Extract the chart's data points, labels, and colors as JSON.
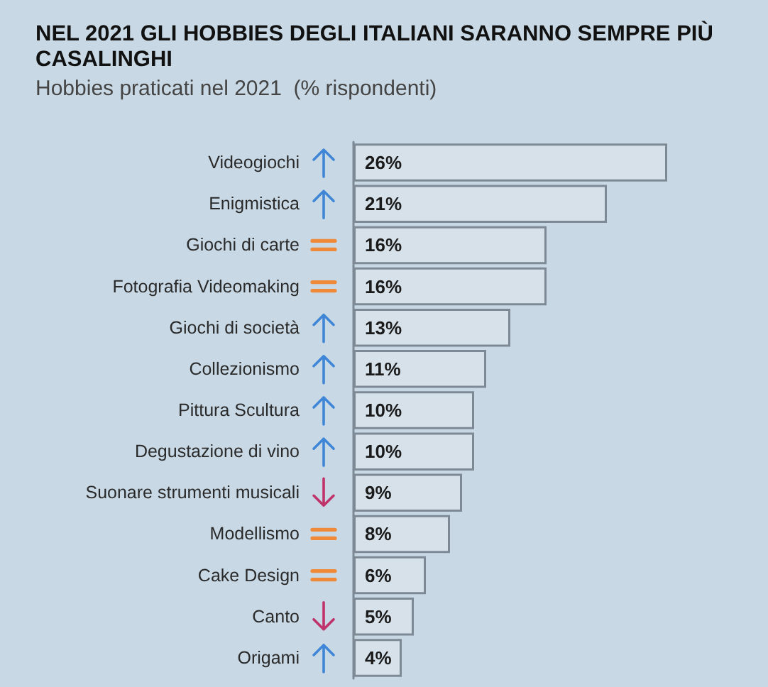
{
  "chart_data": {
    "type": "bar",
    "orientation": "horizontal",
    "title": "NEL 2021 GLI HOBBIES DEGLI ITALIANI SARANNO SEMPRE PIÙ CASALINGHI",
    "subtitle": "Hobbies praticati nel 2021  (% rispondenti)",
    "categories": [
      "Videogiochi",
      "Enigmistica",
      "Giochi di carte",
      "Fotografia Videomaking",
      "Giochi di società",
      "Collezionismo",
      "Pittura Scultura",
      "Degustazione di vino",
      "Suonare strumenti musicali",
      "Modellismo",
      "Cake Design",
      "Canto",
      "Origami"
    ],
    "values": [
      26,
      21,
      16,
      16,
      13,
      11,
      10,
      10,
      9,
      8,
      6,
      5,
      4
    ],
    "value_labels": [
      "26%",
      "21%",
      "16%",
      "16%",
      "13%",
      "11%",
      "10%",
      "10%",
      "9%",
      "8%",
      "6%",
      "5%",
      "4%"
    ],
    "color": "#d6e1ea",
    "relative": false
  }
}
